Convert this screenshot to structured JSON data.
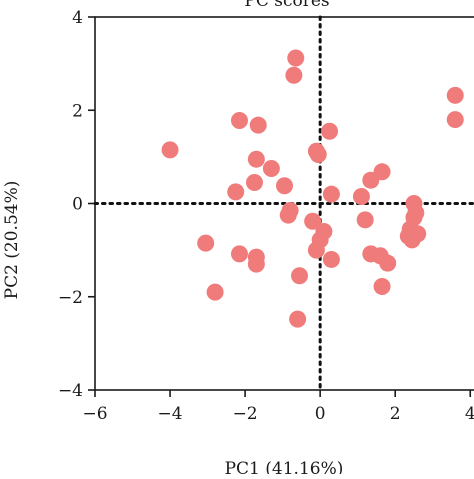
{
  "chart_data": {
    "type": "scatter",
    "title": "PC scores",
    "xlabel": "PC1 (41.16%)",
    "ylabel": "PC2 (20.54%)",
    "xlim": [
      -6,
      4.1
    ],
    "ylim": [
      -4,
      4
    ],
    "x_ticks": [
      -6,
      -4,
      -2,
      0,
      2,
      4
    ],
    "y_ticks": [
      -4,
      -2,
      0,
      2,
      4
    ],
    "x_tick_labels": [
      "−6",
      "−4",
      "−2",
      "0",
      "2",
      "4"
    ],
    "y_tick_labels": [
      "−4",
      "−2",
      "0",
      "2",
      "4"
    ],
    "grid": false,
    "reference_lines": {
      "x": 0,
      "y": 0,
      "style": "dotted"
    },
    "marker_color": "#f07b7b",
    "series": [
      {
        "points": [
          [
            -4.0,
            1.15
          ],
          [
            -2.15,
            1.78
          ],
          [
            -1.65,
            1.68
          ],
          [
            -1.7,
            0.95
          ],
          [
            -1.3,
            0.75
          ],
          [
            -2.25,
            0.25
          ],
          [
            -1.75,
            0.45
          ],
          [
            -0.95,
            0.38
          ],
          [
            -0.8,
            -0.15
          ],
          [
            -0.85,
            -0.25
          ],
          [
            -0.65,
            3.12
          ],
          [
            -0.7,
            2.75
          ],
          [
            0.25,
            1.55
          ],
          [
            -0.1,
            1.12
          ],
          [
            -0.05,
            1.05
          ],
          [
            0.3,
            0.2
          ],
          [
            -0.2,
            -0.38
          ],
          [
            0.1,
            -0.6
          ],
          [
            0.0,
            -0.78
          ],
          [
            -0.1,
            -1.0
          ],
          [
            0.3,
            -1.2
          ],
          [
            -0.55,
            -1.55
          ],
          [
            -0.6,
            -2.48
          ],
          [
            -3.05,
            -0.85
          ],
          [
            -2.15,
            -1.08
          ],
          [
            -1.7,
            -1.15
          ],
          [
            -1.7,
            -1.3
          ],
          [
            -2.8,
            -1.9
          ],
          [
            1.1,
            0.15
          ],
          [
            1.35,
            0.5
          ],
          [
            1.65,
            0.68
          ],
          [
            1.2,
            -0.35
          ],
          [
            1.35,
            -1.08
          ],
          [
            1.6,
            -1.12
          ],
          [
            1.8,
            -1.28
          ],
          [
            1.65,
            -1.78
          ],
          [
            2.5,
            -0.0
          ],
          [
            2.55,
            -0.2
          ],
          [
            2.5,
            -0.3
          ],
          [
            2.4,
            -0.55
          ],
          [
            2.6,
            -0.65
          ],
          [
            2.35,
            -0.7
          ],
          [
            2.45,
            -0.78
          ],
          [
            3.6,
            2.32
          ],
          [
            3.6,
            1.8
          ]
        ]
      }
    ]
  }
}
